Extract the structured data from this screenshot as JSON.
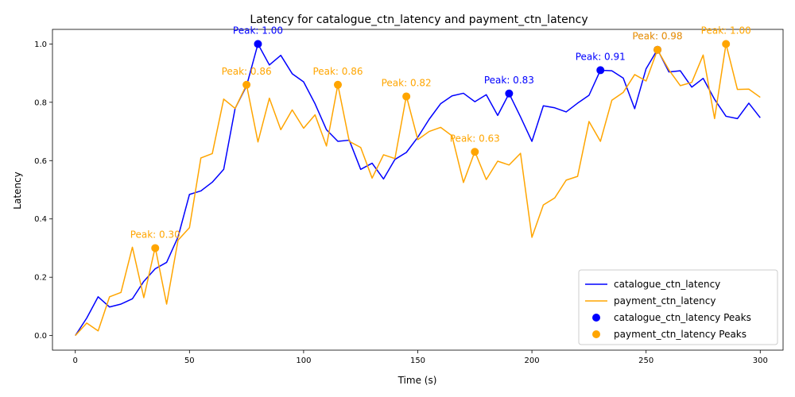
{
  "chart_data": {
    "type": "line",
    "title": "Latency for catalogue_ctn_latency and payment_ctn_latency",
    "xlabel": "Time (s)",
    "ylabel": "Latency",
    "xlim": [
      -10,
      310
    ],
    "ylim": [
      -0.05,
      1.05
    ],
    "x_ticks": [
      "0",
      "50",
      "100",
      "150",
      "200",
      "250",
      "300"
    ],
    "y_ticks": [
      "0.0",
      "0.2",
      "0.4",
      "0.6",
      "0.8",
      "1.0"
    ],
    "grid": false,
    "legend_position": "lower-right",
    "x": [
      0,
      5,
      10,
      15,
      20,
      25,
      30,
      35,
      40,
      45,
      50,
      55,
      60,
      65,
      70,
      75,
      80,
      85,
      90,
      95,
      100,
      105,
      110,
      115,
      120,
      125,
      130,
      135,
      140,
      145,
      150,
      155,
      160,
      165,
      170,
      175,
      180,
      185,
      190,
      195,
      200,
      205,
      210,
      215,
      220,
      225,
      230,
      235,
      240,
      245,
      250,
      255,
      260,
      265,
      270,
      275,
      280,
      285,
      290,
      295,
      300
    ],
    "series": [
      {
        "name": "catalogue_ctn_latency",
        "color": "#0000ff",
        "values": [
          0.0,
          0.06,
          0.133,
          0.098,
          0.108,
          0.126,
          0.186,
          0.229,
          0.251,
          0.338,
          0.484,
          0.496,
          0.526,
          0.57,
          0.779,
          0.856,
          1.0,
          0.928,
          0.961,
          0.898,
          0.87,
          0.795,
          0.706,
          0.666,
          0.67,
          0.57,
          0.591,
          0.537,
          0.604,
          0.628,
          0.68,
          0.742,
          0.795,
          0.822,
          0.831,
          0.802,
          0.826,
          0.755,
          0.83,
          0.75,
          0.666,
          0.788,
          0.781,
          0.767,
          0.797,
          0.824,
          0.91,
          0.908,
          0.883,
          0.778,
          0.915,
          0.981,
          0.904,
          0.908,
          0.852,
          0.882,
          0.81,
          0.752,
          0.744,
          0.797,
          0.747
        ]
      },
      {
        "name": "payment_ctn_latency",
        "color": "#ffa500",
        "values": [
          0.0,
          0.043,
          0.016,
          0.133,
          0.148,
          0.303,
          0.13,
          0.303,
          0.108,
          0.327,
          0.37,
          0.609,
          0.624,
          0.811,
          0.779,
          0.86,
          0.664,
          0.814,
          0.706,
          0.774,
          0.711,
          0.757,
          0.65,
          0.86,
          0.666,
          0.645,
          0.54,
          0.62,
          0.607,
          0.822,
          0.672,
          0.7,
          0.714,
          0.685,
          0.525,
          0.631,
          0.535,
          0.598,
          0.585,
          0.625,
          0.337,
          0.448,
          0.472,
          0.533,
          0.546,
          0.734,
          0.666,
          0.807,
          0.834,
          0.895,
          0.873,
          0.98,
          0.911,
          0.857,
          0.868,
          0.962,
          0.744,
          1.0,
          0.844,
          0.845,
          0.817
        ]
      }
    ],
    "peaks": [
      {
        "series": "catalogue_ctn_latency",
        "color": "#0000ff",
        "x": 80,
        "y": 1.0,
        "label": "Peak: 1.00"
      },
      {
        "series": "catalogue_ctn_latency",
        "color": "#0000ff",
        "x": 190,
        "y": 0.83,
        "label": "Peak: 0.83"
      },
      {
        "series": "catalogue_ctn_latency",
        "color": "#0000ff",
        "x": 230,
        "y": 0.91,
        "label": "Peak: 0.91"
      },
      {
        "series": "catalogue_ctn_latency",
        "color": "#0000ff",
        "x": 255,
        "y": 0.98,
        "label": "Peak: 0.98"
      },
      {
        "series": "payment_ctn_latency",
        "color": "#ffa500",
        "x": 35,
        "y": 0.3,
        "label": "Peak: 0.30"
      },
      {
        "series": "payment_ctn_latency",
        "color": "#ffa500",
        "x": 75,
        "y": 0.86,
        "label": "Peak: 0.86"
      },
      {
        "series": "payment_ctn_latency",
        "color": "#ffa500",
        "x": 115,
        "y": 0.86,
        "label": "Peak: 0.86"
      },
      {
        "series": "payment_ctn_latency",
        "color": "#ffa500",
        "x": 145,
        "y": 0.82,
        "label": "Peak: 0.82"
      },
      {
        "series": "payment_ctn_latency",
        "color": "#ffa500",
        "x": 175,
        "y": 0.63,
        "label": "Peak: 0.63"
      },
      {
        "series": "payment_ctn_latency",
        "color": "#ffa500",
        "x": 255,
        "y": 0.98,
        "label": "Peak: 0.98"
      },
      {
        "series": "payment_ctn_latency",
        "color": "#ffa500",
        "x": 285,
        "y": 1.0,
        "label": "Peak: 1.00"
      }
    ],
    "legend": [
      {
        "label": "catalogue_ctn_latency",
        "kind": "line",
        "color": "#0000ff"
      },
      {
        "label": "payment_ctn_latency",
        "kind": "line",
        "color": "#ffa500"
      },
      {
        "label": "catalogue_ctn_latency Peaks",
        "kind": "marker",
        "color": "#0000ff"
      },
      {
        "label": "payment_ctn_latency Peaks",
        "kind": "marker",
        "color": "#ffa500"
      }
    ]
  }
}
